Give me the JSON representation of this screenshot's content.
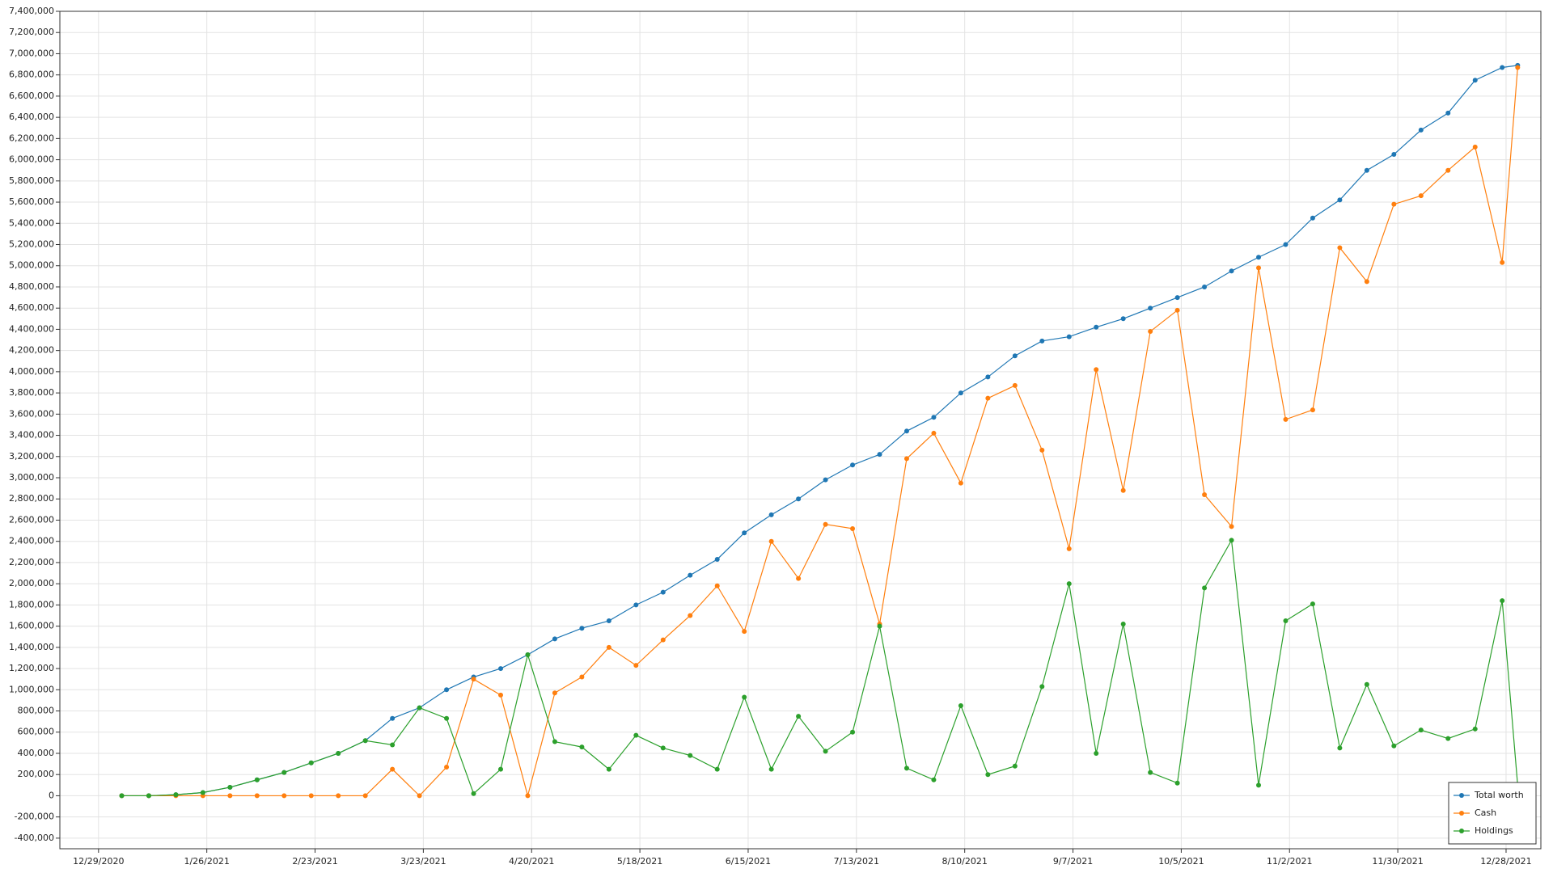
{
  "chart_data": {
    "type": "line",
    "x": [
      "1/4/2021",
      "1/11/2021",
      "1/18/2021",
      "1/25/2021",
      "2/1/2021",
      "2/8/2021",
      "2/15/2021",
      "2/22/2021",
      "3/1/2021",
      "3/8/2021",
      "3/15/2021",
      "3/22/2021",
      "3/29/2021",
      "4/5/2021",
      "4/12/2021",
      "4/19/2021",
      "4/26/2021",
      "5/3/2021",
      "5/10/2021",
      "5/17/2021",
      "5/24/2021",
      "5/31/2021",
      "6/7/2021",
      "6/14/2021",
      "6/21/2021",
      "6/28/2021",
      "7/5/2021",
      "7/12/2021",
      "7/19/2021",
      "7/26/2021",
      "8/2/2021",
      "8/9/2021",
      "8/16/2021",
      "8/23/2021",
      "8/30/2021",
      "9/6/2021",
      "9/13/2021",
      "9/20/2021",
      "9/27/2021",
      "10/4/2021",
      "10/11/2021",
      "10/18/2021",
      "10/25/2021",
      "11/1/2021",
      "11/8/2021",
      "11/15/2021",
      "11/22/2021",
      "11/29/2021",
      "12/6/2021",
      "12/13/2021",
      "12/20/2021",
      "12/27/2021",
      "12/31/2021"
    ],
    "series": [
      {
        "name": "Total worth",
        "color": "#1f77b4",
        "values": [
          0,
          0,
          10000,
          30000,
          80000,
          150000,
          220000,
          310000,
          400000,
          520000,
          730000,
          830000,
          1000000,
          1120000,
          1200000,
          1330000,
          1480000,
          1580000,
          1650000,
          1800000,
          1920000,
          2080000,
          2230000,
          2480000,
          2650000,
          2800000,
          2980000,
          3120000,
          3220000,
          3440000,
          3570000,
          3800000,
          3950000,
          4150000,
          4290000,
          4330000,
          4420000,
          4500000,
          4600000,
          4700000,
          4800000,
          4950000,
          5080000,
          5200000,
          5450000,
          5620000,
          5900000,
          6050000,
          6280000,
          6440000,
          6750000,
          6870000,
          6890000
        ]
      },
      {
        "name": "Cash",
        "color": "#ff7f0e",
        "values": [
          0,
          0,
          0,
          0,
          0,
          0,
          0,
          0,
          0,
          0,
          250000,
          0,
          270000,
          1100000,
          950000,
          0,
          970000,
          1120000,
          1400000,
          1230000,
          1470000,
          1700000,
          1980000,
          1550000,
          2400000,
          2050000,
          2560000,
          2520000,
          1620000,
          3180000,
          3420000,
          2950000,
          3750000,
          3870000,
          3260000,
          2330000,
          4020000,
          2880000,
          4380000,
          4580000,
          2840000,
          2540000,
          4980000,
          3550000,
          3640000,
          5170000,
          4850000,
          5580000,
          5660000,
          5900000,
          6120000,
          5030000,
          6870000
        ]
      },
      {
        "name": "Holdings",
        "color": "#2ca02c",
        "values": [
          0,
          0,
          10000,
          30000,
          80000,
          150000,
          220000,
          310000,
          400000,
          520000,
          480000,
          830000,
          730000,
          20000,
          250000,
          1330000,
          510000,
          460000,
          250000,
          570000,
          450000,
          380000,
          250000,
          930000,
          250000,
          750000,
          420000,
          600000,
          1600000,
          260000,
          150000,
          850000,
          200000,
          280000,
          1030000,
          2000000,
          400000,
          1620000,
          220000,
          120000,
          1960000,
          2410000,
          100000,
          1650000,
          1810000,
          450000,
          1050000,
          470000,
          620000,
          540000,
          630000,
          1840000,
          100000
        ]
      }
    ],
    "xlim": [
      "12/19/2020",
      "1/6/2022"
    ],
    "xticks": [
      "12/29/2020",
      "1/26/2021",
      "2/23/2021",
      "3/23/2021",
      "4/20/2021",
      "5/18/2021",
      "6/15/2021",
      "7/13/2021",
      "8/10/2021",
      "9/7/2021",
      "10/5/2021",
      "11/2/2021",
      "11/30/2021",
      "12/28/2021"
    ],
    "ylim": [
      -500000,
      7400000
    ],
    "yticks": [
      {
        "value": -400000,
        "label": "-400,000"
      },
      {
        "value": -200000,
        "label": "-200,000"
      },
      0,
      {
        "value": 200000,
        "label": "200,000"
      },
      {
        "value": 400000,
        "label": "400,000"
      },
      {
        "value": 600000,
        "label": "600,000"
      },
      {
        "value": 800000,
        "label": "800,000"
      },
      {
        "value": 1000000,
        "label": "1,000,000"
      },
      {
        "value": 1200000,
        "label": "1,200,000"
      },
      {
        "value": 1400000,
        "label": "1,400,000"
      },
      {
        "value": 1600000,
        "label": "1,600,000"
      },
      {
        "value": 1800000,
        "label": "1,800,000"
      },
      {
        "value": 2000000,
        "label": "2,000,000"
      },
      {
        "value": 2200000,
        "label": "2,200,000"
      },
      {
        "value": 2400000,
        "label": "2,400,000"
      },
      {
        "value": 2600000,
        "label": "2,600,000"
      },
      {
        "value": 2800000,
        "label": "2,800,000"
      },
      {
        "value": 3000000,
        "label": "3,000,000"
      },
      {
        "value": 3200000,
        "label": "3,200,000"
      },
      {
        "value": 3400000,
        "label": "3,400,000"
      },
      {
        "value": 3600000,
        "label": "3,600,000"
      },
      {
        "value": 3800000,
        "label": "3,800,000"
      },
      {
        "value": 4000000,
        "label": "4,000,000"
      },
      {
        "value": 4200000,
        "label": "4,200,000"
      },
      {
        "value": 4400000,
        "label": "4,400,000"
      },
      {
        "value": 4600000,
        "label": "4,600,000"
      },
      {
        "value": 4800000,
        "label": "4,800,000"
      },
      {
        "value": 5000000,
        "label": "5,000,000"
      },
      {
        "value": 5200000,
        "label": "5,200,000"
      },
      {
        "value": 5400000,
        "label": "5,400,000"
      },
      {
        "value": 5600000,
        "label": "5,600,000"
      },
      {
        "value": 5800000,
        "label": "5,800,000"
      },
      {
        "value": 6000000,
        "label": "6,000,000"
      },
      {
        "value": 6200000,
        "label": "6,200,000"
      },
      {
        "value": 6400000,
        "label": "6,400,000"
      },
      {
        "value": 6600000,
        "label": "6,600,000"
      },
      {
        "value": 6800000,
        "label": "6,800,000"
      },
      {
        "value": 7000000,
        "label": "7,000,000"
      },
      {
        "value": 7200000,
        "label": "7,200,000"
      },
      {
        "value": 7400000,
        "label": "7,400,000"
      }
    ],
    "grid": true,
    "legend": "lower right"
  }
}
